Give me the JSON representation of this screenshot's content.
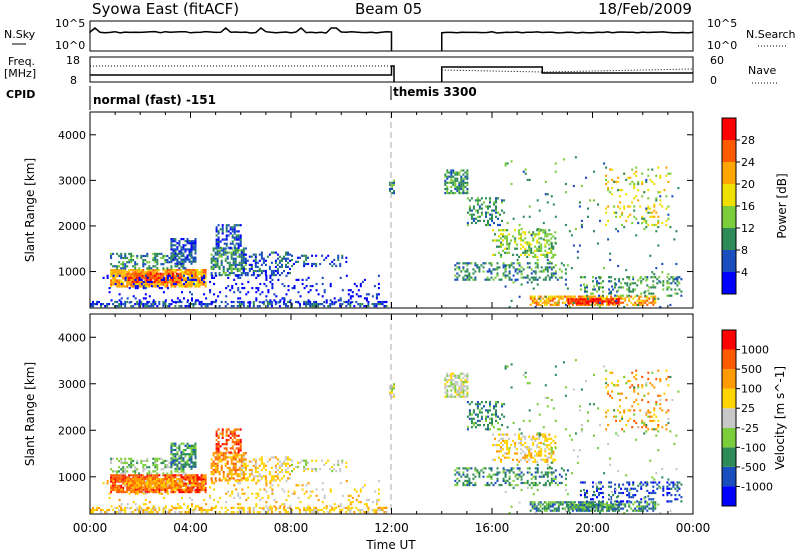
{
  "header": {
    "title": "Syowa East (fitACF)",
    "beam": "Beam 05",
    "date": "18/Feb/2009"
  },
  "left_labels": {
    "nsky": "N.Sky",
    "freq_line1": "Freq.",
    "freq_line2": "[MHz]",
    "cpid": "CPID"
  },
  "right_labels": {
    "nsearch": "N.Search",
    "nave": "Nave"
  },
  "axis_ticks_small": {
    "noise_left": [
      "10^5",
      "10^0"
    ],
    "noise_right": [
      "10^5",
      "10^0"
    ],
    "freq_left": [
      "18",
      "8"
    ],
    "nave_right": [
      "60",
      "0"
    ]
  },
  "cpid_labels": [
    "normal (fast) -151",
    "themis 3300"
  ],
  "time_axis": {
    "label": "Time UT",
    "ticks": [
      "00:00",
      "04:00",
      "08:00",
      "12:00",
      "16:00",
      "20:00",
      "00:00"
    ]
  },
  "colors": {
    "power_scale": [
      "#0000ff",
      "#1a4dbd",
      "#2e8b57",
      "#7ccd3c",
      "#f0e000",
      "#ffa500",
      "#ff5a00",
      "#ff0000"
    ],
    "velocity_scale": [
      "#ff0000",
      "#ff5a00",
      "#ff9a00",
      "#ffd400",
      "#c8c8c8",
      "#7ccd3c",
      "#2e8b57",
      "#1a4dbd",
      "#0000ff"
    ]
  },
  "chart_data": [
    {
      "type": "heatmap",
      "name": "power",
      "ylabel": "Slant Range [km]",
      "xlabel": "Time UT",
      "xlim": [
        "00:00",
        "24:00"
      ],
      "ylim": [
        200,
        4500
      ],
      "yticks": [
        1000,
        2000,
        3000,
        4000
      ],
      "colorbar": {
        "label": "Power [dB]",
        "ticks": [
          "4",
          "8",
          "12",
          "16",
          "20",
          "24",
          "28"
        ]
      }
    },
    {
      "type": "heatmap",
      "name": "velocity",
      "ylabel": "Slant Range [km]",
      "xlabel": "Time UT",
      "xlim": [
        "00:00",
        "24:00"
      ],
      "ylim": [
        200,
        4500
      ],
      "yticks": [
        1000,
        2000,
        3000,
        4000
      ],
      "colorbar": {
        "label": "Velocity [m s^-1]",
        "ticks": [
          "1000",
          "500",
          "100",
          "25",
          "-25",
          "-100",
          "-500",
          "-1000"
        ]
      }
    }
  ]
}
